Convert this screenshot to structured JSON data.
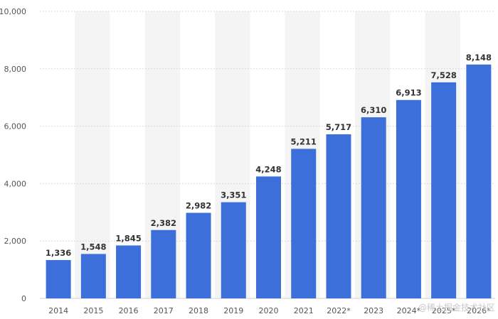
{
  "chart_data": {
    "type": "bar",
    "categories": [
      "2014",
      "2015",
      "2016",
      "2017",
      "2018",
      "2019",
      "2020",
      "2021",
      "2022*",
      "2023",
      "2024*",
      "2025*",
      "2026*"
    ],
    "values": [
      1336,
      1548,
      1845,
      2382,
      2982,
      3351,
      4248,
      5211,
      5717,
      6310,
      6913,
      7528,
      8148
    ],
    "value_labels": [
      "1,336",
      "1,548",
      "1,845",
      "2,382",
      "2,982",
      "3,351",
      "4,248",
      "5,211",
      "5,717",
      "6,310",
      "6,913",
      "7,528",
      "8,148"
    ],
    "title": "",
    "xlabel": "",
    "ylabel": "",
    "ylim": [
      0,
      10000
    ],
    "yticks": [
      0,
      2000,
      4000,
      6000,
      8000,
      10000
    ],
    "ytick_labels": [
      "0",
      "2,000",
      "4,000",
      "6,000",
      "8,000",
      "10,000"
    ],
    "grid": true,
    "legend": "none",
    "bar_color": "#3d6fdb",
    "band_color": "#f4f4f4"
  },
  "watermark": {
    "text": "@稀土掘金技术社区"
  }
}
